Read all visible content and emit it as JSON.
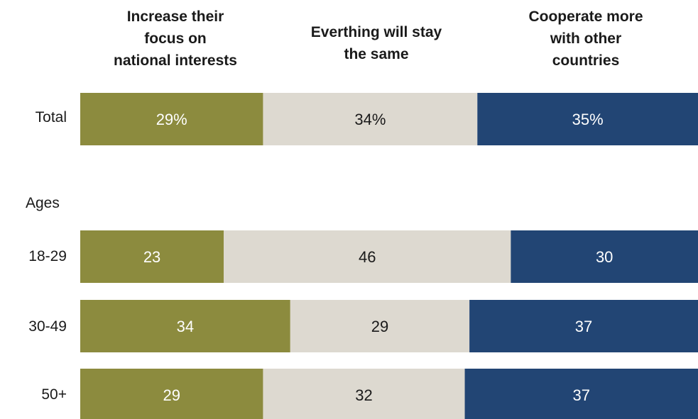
{
  "chart_data": {
    "type": "bar",
    "orientation": "horizontal",
    "stacked": true,
    "title": "",
    "xlabel": "",
    "ylabel": "",
    "xlim": [
      0,
      100
    ],
    "grid": false,
    "legend_position": "top",
    "series": [
      {
        "name": "Increase their focus on national interests",
        "color": "#8c8b3e",
        "text_color": "#ffffff",
        "values": [
          29,
          23,
          34,
          29
        ],
        "data_labels": [
          "29%",
          "23",
          "34",
          "29"
        ]
      },
      {
        "name": "Everthing will stay the same",
        "color": "#ddd9d0",
        "text_color": "#1a1a1a",
        "values": [
          34,
          46,
          29,
          32
        ],
        "data_labels": [
          "34%",
          "46",
          "29",
          "32"
        ]
      },
      {
        "name": "Cooperate more with other countries",
        "color": "#224574",
        "text_color": "#ffffff",
        "values": [
          35,
          30,
          37,
          37
        ],
        "data_labels": [
          "35%",
          "30",
          "37",
          "37"
        ]
      }
    ],
    "categories": [
      "Total",
      "18-29",
      "30-49",
      "50+"
    ],
    "group_label": "Ages"
  }
}
